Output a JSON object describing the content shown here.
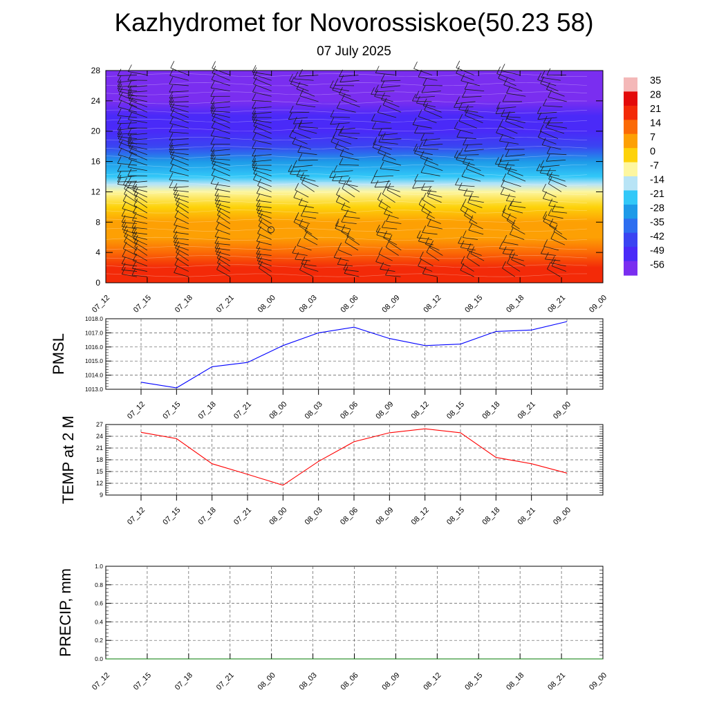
{
  "title": "Kazhydromet for Novorossiskoe(50.23 58)",
  "subtitle": "07 July 2025",
  "chart_data": [
    {
      "type": "heatmap",
      "name": "vertical-temperature-wind-section",
      "x_tick_labels": [
        "07_12",
        "07_15",
        "07_18",
        "07_21",
        "08_00",
        "08_03",
        "08_06",
        "08_09",
        "08_12",
        "08_15",
        "08_18",
        "08_21",
        "09_00"
      ],
      "ylim": [
        0,
        28
      ],
      "y_ticks": [
        0,
        4,
        8,
        12,
        16,
        20,
        24,
        28
      ],
      "colorbar": {
        "labels": [
          "35",
          "28",
          "21",
          "14",
          "7",
          "0",
          "-7",
          "-14",
          "-21",
          "-28",
          "-35",
          "-42",
          "-49",
          "-56"
        ],
        "values": [
          35,
          28,
          21,
          14,
          7,
          0,
          -7,
          -14,
          -21,
          -28,
          -35,
          -42,
          -49,
          -56
        ],
        "colors": [
          "#f4b8b8",
          "#e30a0a",
          "#f32a08",
          "#fb6a06",
          "#fda004",
          "#fdd20a",
          "#fdf6a0",
          "#b8e4f6",
          "#32c8f8",
          "#1e9ae8",
          "#2d6ef0",
          "#3a44f2",
          "#4a2af8",
          "#7a2ef0"
        ]
      },
      "temperature_levels": [
        0,
        2,
        4,
        6,
        8,
        10,
        12,
        13,
        14,
        16,
        18,
        20,
        22,
        24,
        26,
        28
      ],
      "temperature_values": [
        23,
        20,
        15,
        10,
        4,
        -2,
        -9,
        -14,
        -18,
        -31,
        -42,
        -48,
        -50,
        -54,
        -58,
        -60
      ],
      "grid": true
    },
    {
      "type": "line",
      "name": "pmsl",
      "ylabel": "PMSL",
      "x": [
        "07_12",
        "07_15",
        "07_18",
        "07_21",
        "08_00",
        "08_03",
        "08_06",
        "08_09",
        "08_12",
        "08_15",
        "08_18",
        "08_21",
        "09_00"
      ],
      "series": [
        {
          "values": [
            1013.5,
            1013.1,
            1014.6,
            1014.9,
            1016.1,
            1017.0,
            1017.4,
            1016.6,
            1016.1,
            1016.2,
            1017.1,
            1017.2,
            1017.8
          ],
          "color": "#0000ff"
        }
      ],
      "ylim": [
        1013.0,
        1018.0
      ],
      "y_ticks": [
        "1013.0",
        "1014.0",
        "1015.0",
        "1016.0",
        "1017.0",
        "1018.0"
      ],
      "grid": true
    },
    {
      "type": "line",
      "name": "temp-2m",
      "ylabel": "TEMP at 2 M",
      "x": [
        "07_12",
        "07_15",
        "07_18",
        "07_21",
        "08_00",
        "08_03",
        "08_06",
        "08_09",
        "08_12",
        "08_15",
        "08_18",
        "08_21",
        "09_00"
      ],
      "series": [
        {
          "values": [
            25.0,
            23.4,
            17.0,
            14.3,
            11.5,
            17.6,
            22.6,
            24.9,
            25.9,
            24.9,
            18.6,
            17.0,
            14.6
          ],
          "color": "#ff0000"
        }
      ],
      "ylim": [
        9,
        27
      ],
      "y_ticks": [
        "9",
        "12",
        "15",
        "18",
        "21",
        "24",
        "27"
      ],
      "grid": true
    },
    {
      "type": "line",
      "name": "precip",
      "ylabel": "PRECIP, mm",
      "x_tick_labels": [
        "07_12",
        "07_15",
        "07_18",
        "07_21",
        "08_00",
        "08_03",
        "08_06",
        "08_09",
        "08_12",
        "08_15",
        "08_18",
        "08_21",
        "09_00"
      ],
      "series": [
        {
          "values": [
            0,
            0,
            0,
            0,
            0,
            0,
            0,
            0,
            0,
            0,
            0,
            0,
            0
          ],
          "color": "#007a00"
        }
      ],
      "ylim": [
        0.0,
        1.0
      ],
      "y_ticks": [
        "0.0",
        "0.2",
        "0.4",
        "0.6",
        "0.8",
        "1.0"
      ],
      "grid": true
    }
  ]
}
